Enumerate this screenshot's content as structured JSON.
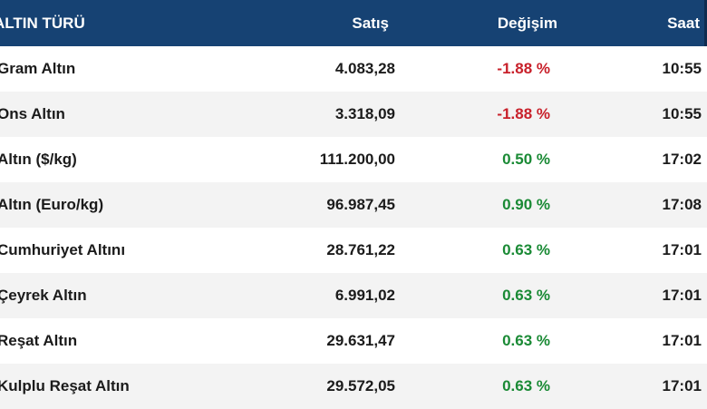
{
  "header": {
    "name": "ALTIN TÜRÜ",
    "price": "Satış",
    "change": "Değişim",
    "time": "Saat"
  },
  "rows": [
    {
      "name": "Gram Altın",
      "price": "4.083,28",
      "change": "-1.88 %",
      "time": "10:55"
    },
    {
      "name": "Ons Altın",
      "price": "3.318,09",
      "change": "-1.88 %",
      "time": "10:55"
    },
    {
      "name": "Altın ($/kg)",
      "price": "111.200,00",
      "change": "0.50 %",
      "time": "17:02"
    },
    {
      "name": "Altın (Euro/kg)",
      "price": "96.987,45",
      "change": "0.90 %",
      "time": "17:08"
    },
    {
      "name": "Cumhuriyet Altını",
      "price": "28.761,22",
      "change": "0.63 %",
      "time": "17:01"
    },
    {
      "name": "Çeyrek Altın",
      "price": "6.991,02",
      "change": "0.63 %",
      "time": "17:01"
    },
    {
      "name": "Reşat Altın",
      "price": "29.631,47",
      "change": "0.63 %",
      "time": "17:01"
    },
    {
      "name": "Kulplu Reşat Altın",
      "price": "29.572,05",
      "change": "0.63 %",
      "time": "17:01"
    }
  ],
  "colors": {
    "header_bg": "#164273",
    "negative": "#c8202a",
    "positive": "#1a8a35"
  }
}
